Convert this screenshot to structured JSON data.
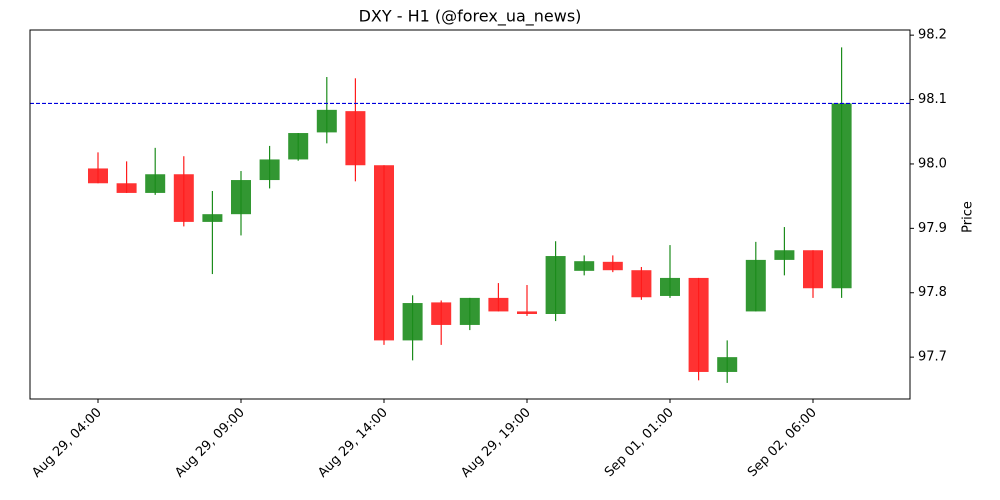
{
  "chart_data": {
    "type": "candlestick",
    "title": "DXY - H1 (@forex_ua_news)",
    "y_label": "Price",
    "categories": [
      "Aug 29, 04:00",
      null,
      null,
      null,
      null,
      "Aug 29, 09:00",
      null,
      null,
      null,
      null,
      "Aug 29, 14:00",
      null,
      null,
      null,
      null,
      "Aug 29, 19:00",
      null,
      null,
      null,
      null,
      "Sep 01, 01:00",
      null,
      null,
      null,
      null,
      "Sep 02, 06:00",
      null
    ],
    "open": [
      97.993,
      97.97,
      97.955,
      97.984,
      97.91,
      97.922,
      97.975,
      98.007,
      98.049,
      98.082,
      97.998,
      97.726,
      97.785,
      97.75,
      97.792,
      97.771,
      97.767,
      97.834,
      97.848,
      97.835,
      97.795,
      97.823,
      97.677,
      97.771,
      97.851,
      97.866,
      97.807
    ],
    "high": [
      98.018,
      98.004,
      98.025,
      98.012,
      97.958,
      97.989,
      98.028,
      98.048,
      98.135,
      98.133,
      97.998,
      97.796,
      97.788,
      97.792,
      97.815,
      97.812,
      97.88,
      97.858,
      97.858,
      97.84,
      97.874,
      97.823,
      97.726,
      97.879,
      97.902,
      97.866,
      98.181
    ],
    "low": [
      97.97,
      97.955,
      97.952,
      97.903,
      97.829,
      97.889,
      97.962,
      98.005,
      98.032,
      97.973,
      97.719,
      97.695,
      97.719,
      97.742,
      97.771,
      97.764,
      97.756,
      97.827,
      97.832,
      97.789,
      97.792,
      97.664,
      97.66,
      97.771,
      97.827,
      97.792,
      97.792
    ],
    "close": [
      97.97,
      97.955,
      97.984,
      97.91,
      97.922,
      97.975,
      98.007,
      98.048,
      98.084,
      97.998,
      97.726,
      97.784,
      97.75,
      97.792,
      97.771,
      97.767,
      97.857,
      97.849,
      97.835,
      97.793,
      97.823,
      97.677,
      97.7,
      97.851,
      97.866,
      97.807,
      98.094
    ],
    "up_color": "#1c8c1c",
    "down_color": "#ff1c1c",
    "hline": {
      "value": 98.094,
      "color": "#0000dd"
    },
    "ylim": [
      97.635,
      98.208
    ],
    "yticks": [
      97.7,
      97.8,
      97.9,
      {
        "value": 98,
        "label": "98.0"
      },
      98.1,
      98.2
    ],
    "y_axis_side": "right"
  }
}
